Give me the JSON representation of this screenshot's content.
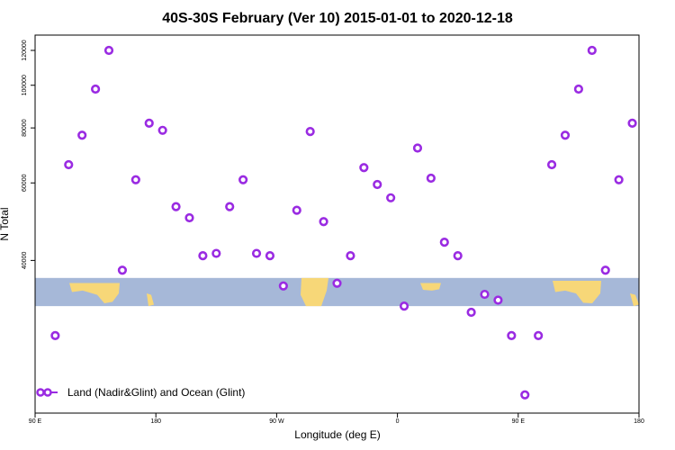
{
  "chart_data": {
    "type": "scatter",
    "title": "40S-30S February (Ver 10)   2015-01-01 to 2020-12-18",
    "xlabel": "Longitude (deg E)",
    "ylabel": "N Total",
    "y_scale": "log",
    "xlim": [
      90,
      540
    ],
    "ylim": [
      18000,
      130000
    ],
    "x_ticks": [
      {
        "value": 90,
        "label": "90 E"
      },
      {
        "value": 180,
        "label": "180"
      },
      {
        "value": 270,
        "label": "90 W"
      },
      {
        "value": 360,
        "label": "0"
      },
      {
        "value": 450,
        "label": "90 E"
      },
      {
        "value": 540,
        "label": "180"
      }
    ],
    "y_ticks": [
      {
        "value": 40000,
        "label": "40000"
      },
      {
        "value": 60000,
        "label": "60000"
      },
      {
        "value": 80000,
        "label": "80000"
      },
      {
        "value": 100000,
        "label": "100000"
      },
      {
        "value": 120000,
        "label": "120000"
      }
    ],
    "grid": false,
    "legend": {
      "position": "bottom-left",
      "entries": [
        "Land (Nadir&Glint) and Ocean (Glint)"
      ]
    },
    "marker_color": "#9a2be2",
    "map_strip": {
      "ocean_color": "#a6b8d8",
      "land_color": "#f7d778",
      "y_range": [
        31500,
        36500
      ]
    },
    "series": [
      {
        "name": "Land (Nadir&Glint) and Ocean (Glint)",
        "x": [
          105,
          115,
          125,
          135,
          145,
          155,
          165,
          175,
          185,
          195,
          205,
          215,
          225,
          235,
          245,
          255,
          265,
          275,
          285,
          295,
          305,
          315,
          325,
          335,
          345,
          355,
          365,
          375,
          385,
          395,
          405,
          415,
          425,
          435,
          445,
          455,
          465,
          475,
          485,
          495,
          505,
          515,
          525,
          535
        ],
        "y": [
          27000,
          66000,
          77000,
          98000,
          120000,
          38000,
          61000,
          82000,
          79000,
          53000,
          50000,
          41000,
          41500,
          53000,
          61000,
          41500,
          41000,
          35000,
          52000,
          78500,
          49000,
          35500,
          41000,
          65000,
          59500,
          55500,
          31500,
          72000,
          61500,
          44000,
          41000,
          30500,
          33500,
          32500,
          27000,
          19800,
          27000,
          66000,
          77000,
          98000,
          120000,
          38000,
          61000,
          82000
        ]
      }
    ]
  }
}
